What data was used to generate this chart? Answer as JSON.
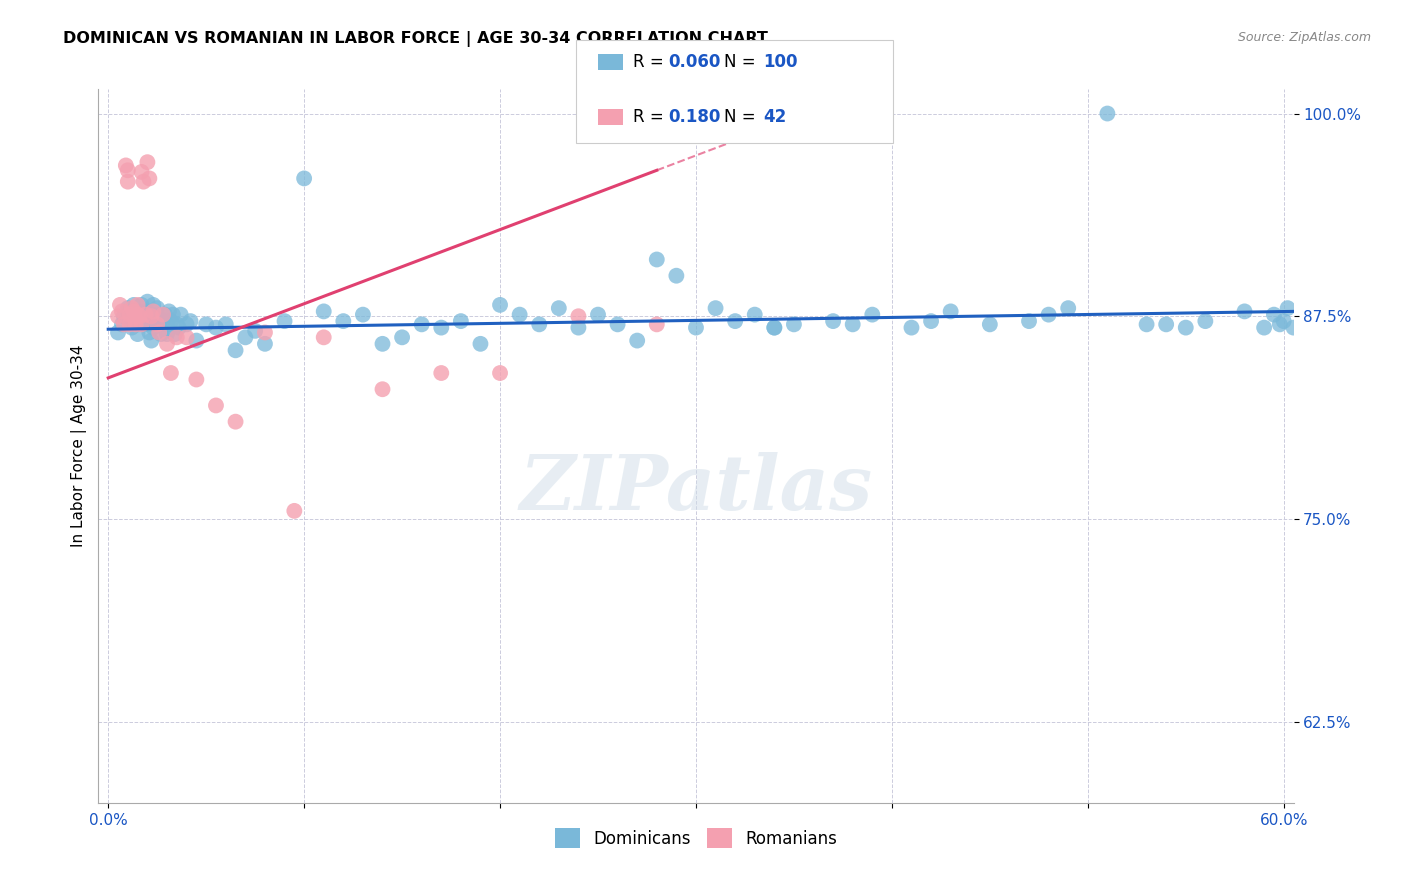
{
  "title": "DOMINICAN VS ROMANIAN IN LABOR FORCE | AGE 30-34 CORRELATION CHART",
  "source": "Source: ZipAtlas.com",
  "ylabel": "In Labor Force | Age 30-34",
  "xlim": [
    -0.005,
    0.605
  ],
  "ylim": [
    0.575,
    1.015
  ],
  "xticks": [
    0.0,
    0.1,
    0.2,
    0.3,
    0.4,
    0.5,
    0.6
  ],
  "xticklabels": [
    "0.0%",
    "",
    "",
    "",
    "",
    "",
    "60.0%"
  ],
  "yticks": [
    0.625,
    0.75,
    0.875,
    1.0
  ],
  "yticklabels": [
    "62.5%",
    "75.0%",
    "87.5%",
    "100.0%"
  ],
  "R_dominican": 0.06,
  "N_dominican": 100,
  "R_romanian": 0.18,
  "N_romanian": 42,
  "blue_color": "#7ab8d9",
  "pink_color": "#f4a0b0",
  "blue_line_color": "#2060c0",
  "pink_line_color": "#e04070",
  "blue_text_color": "#1a56c4",
  "axis_label_color": "#1a56c4",
  "grid_color": "#ccccdd",
  "watermark": "ZIPatlas",
  "dominican_x": [
    0.005,
    0.007,
    0.008,
    0.01,
    0.01,
    0.011,
    0.012,
    0.013,
    0.013,
    0.014,
    0.015,
    0.015,
    0.016,
    0.017,
    0.018,
    0.019,
    0.02,
    0.02,
    0.021,
    0.021,
    0.022,
    0.022,
    0.023,
    0.023,
    0.024,
    0.025,
    0.025,
    0.026,
    0.027,
    0.028,
    0.029,
    0.03,
    0.03,
    0.031,
    0.032,
    0.033,
    0.034,
    0.035,
    0.036,
    0.037,
    0.04,
    0.042,
    0.045,
    0.05,
    0.055,
    0.06,
    0.065,
    0.07,
    0.075,
    0.08,
    0.09,
    0.1,
    0.11,
    0.12,
    0.13,
    0.14,
    0.15,
    0.16,
    0.17,
    0.18,
    0.19,
    0.2,
    0.21,
    0.22,
    0.23,
    0.24,
    0.25,
    0.26,
    0.27,
    0.28,
    0.29,
    0.3,
    0.31,
    0.32,
    0.33,
    0.34,
    0.35,
    0.37,
    0.39,
    0.41,
    0.43,
    0.45,
    0.47,
    0.49,
    0.51,
    0.53,
    0.55,
    0.56,
    0.58,
    0.59,
    0.595,
    0.598,
    0.6,
    0.602,
    0.605,
    0.54,
    0.48,
    0.42,
    0.38,
    0.34
  ],
  "dominican_y": [
    0.865,
    0.87,
    0.875,
    0.88,
    0.878,
    0.872,
    0.868,
    0.875,
    0.882,
    0.876,
    0.87,
    0.864,
    0.878,
    0.882,
    0.87,
    0.875,
    0.884,
    0.878,
    0.87,
    0.865,
    0.86,
    0.876,
    0.868,
    0.882,
    0.874,
    0.88,
    0.876,
    0.87,
    0.864,
    0.872,
    0.876,
    0.87,
    0.864,
    0.878,
    0.872,
    0.876,
    0.864,
    0.87,
    0.868,
    0.876,
    0.87,
    0.872,
    0.86,
    0.87,
    0.868,
    0.87,
    0.854,
    0.862,
    0.866,
    0.858,
    0.872,
    0.96,
    0.878,
    0.872,
    0.876,
    0.858,
    0.862,
    0.87,
    0.868,
    0.872,
    0.858,
    0.882,
    0.876,
    0.87,
    0.88,
    0.868,
    0.876,
    0.87,
    0.86,
    0.91,
    0.9,
    0.868,
    0.88,
    0.872,
    0.876,
    0.868,
    0.87,
    0.872,
    0.876,
    0.868,
    0.878,
    0.87,
    0.872,
    0.88,
    1.0,
    0.87,
    0.868,
    0.872,
    0.878,
    0.868,
    0.876,
    0.87,
    0.872,
    0.88,
    0.868,
    0.87,
    0.876,
    0.872,
    0.87,
    0.868
  ],
  "romanian_x": [
    0.005,
    0.006,
    0.007,
    0.008,
    0.009,
    0.01,
    0.01,
    0.011,
    0.011,
    0.012,
    0.013,
    0.013,
    0.014,
    0.015,
    0.015,
    0.016,
    0.017,
    0.017,
    0.018,
    0.019,
    0.02,
    0.021,
    0.022,
    0.023,
    0.025,
    0.026,
    0.028,
    0.03,
    0.032,
    0.035,
    0.04,
    0.045,
    0.055,
    0.065,
    0.08,
    0.095,
    0.11,
    0.14,
    0.17,
    0.2,
    0.24,
    0.28
  ],
  "romanian_y": [
    0.875,
    0.882,
    0.878,
    0.87,
    0.968,
    0.965,
    0.958,
    0.876,
    0.87,
    0.88,
    0.875,
    0.878,
    0.87,
    0.882,
    0.876,
    0.875,
    0.87,
    0.964,
    0.958,
    0.876,
    0.97,
    0.96,
    0.875,
    0.878,
    0.87,
    0.865,
    0.876,
    0.858,
    0.84,
    0.862,
    0.862,
    0.836,
    0.82,
    0.81,
    0.865,
    0.755,
    0.862,
    0.83,
    0.84,
    0.84,
    0.875,
    0.87
  ]
}
